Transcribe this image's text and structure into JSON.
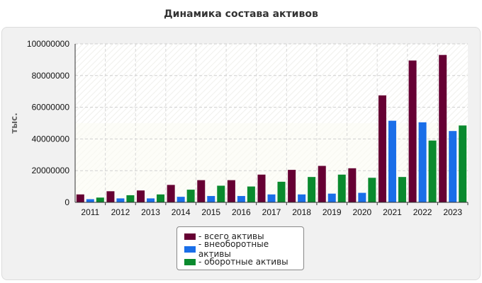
{
  "chart_data": {
    "type": "bar",
    "title": "Динамика состава активов",
    "ylabel": "тыс.",
    "xlabel": "",
    "ylim": [
      0,
      100000000
    ],
    "yticks": [
      "0",
      "20000000",
      "40000000",
      "60000000",
      "80000000",
      "100000000"
    ],
    "categories": [
      "2011",
      "2012",
      "2013",
      "2014",
      "2015",
      "2016",
      "2017",
      "2018",
      "2019",
      "2020",
      "2021",
      "2022",
      "2023"
    ],
    "series": [
      {
        "name": "- всего активы",
        "color": "#660033",
        "values": [
          5000000,
          7000000,
          7500000,
          11000000,
          14000000,
          14000000,
          17500000,
          20500000,
          23000000,
          21500000,
          67500000,
          89500000,
          93000000
        ]
      },
      {
        "name": "- внеоборотные активы",
        "color": "#1a6ee8",
        "values": [
          2000000,
          2500000,
          2500000,
          3500000,
          4000000,
          4000000,
          5000000,
          5000000,
          5500000,
          6000000,
          51500000,
          50500000,
          45000000
        ]
      },
      {
        "name": "- оборотные активы",
        "color": "#0a8a2e",
        "values": [
          3000000,
          4500000,
          5000000,
          8000000,
          10500000,
          10000000,
          13000000,
          16000000,
          17500000,
          15500000,
          16000000,
          39000000,
          48500000
        ]
      }
    ],
    "grid": true,
    "legend_position": "bottom"
  }
}
